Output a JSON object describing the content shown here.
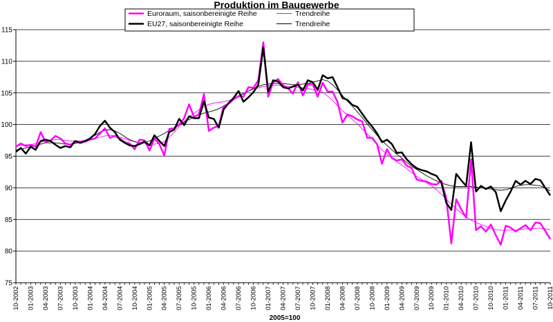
{
  "chart_data": {
    "type": "line",
    "title": "Produktion im Baugewerbe",
    "xlabel": "2005=100",
    "ylabel": "",
    "ylim": [
      75,
      115
    ],
    "yticks": [
      75,
      80,
      85,
      90,
      95,
      100,
      105,
      110,
      115
    ],
    "grid": "horizontal",
    "legend_position": "top-left",
    "x_tick_labels": [
      "10-2002",
      "01-2003",
      "04-2003",
      "07-2003",
      "10-2003",
      "01-2004",
      "04-2004",
      "07-2004",
      "10-2004",
      "01-2005",
      "04-2005",
      "07-2005",
      "10-2005",
      "01-2006",
      "04-2006",
      "07-2006",
      "10-2006",
      "01-2007",
      "04-2007",
      "07-2007",
      "10-2007",
      "01-2008",
      "04-2008",
      "07-2008",
      "10-2008",
      "01-2009",
      "04-2009",
      "07-2009",
      "10-2009",
      "01-2010",
      "04-2010",
      "07-2010",
      "10-2010",
      "01-2011",
      "04-2011",
      "07-2011",
      "10-2011"
    ],
    "series": [
      {
        "name": "Euroraum, saisonbereinigte Reihe",
        "color": "#ff00ff",
        "width": 2.5,
        "values": [
          96.5,
          97.0,
          96.6,
          96.8,
          96.5,
          98.8,
          97.2,
          97.5,
          98.2,
          97.8,
          97.0,
          96.8,
          97.3,
          97.1,
          97.3,
          97.6,
          97.8,
          98.6,
          99.4,
          97.9,
          98.2,
          97.8,
          97.2,
          97.0,
          96.1,
          97.6,
          97.5,
          95.9,
          97.8,
          96.9,
          95.1,
          99.3,
          99.4,
          100.0,
          101.0,
          103.2,
          101.2,
          101.6,
          104.8,
          99.0,
          99.5,
          99.8,
          102.9,
          103.3,
          104.0,
          104.5,
          104.4,
          105.9,
          105.8,
          107.0,
          113.0,
          104.4,
          106.7,
          107.2,
          106.2,
          105.7,
          104.9,
          106.7,
          104.6,
          106.3,
          106.4,
          104.4,
          106.6,
          105.2,
          105.2,
          103.6,
          100.3,
          101.6,
          101.3,
          100.8,
          100.5,
          97.9,
          97.9,
          96.9,
          93.8,
          96.1,
          94.7,
          94.3,
          94.5,
          93.5,
          93.1,
          91.3,
          91.1,
          91.0,
          90.6,
          90.5,
          91.1,
          88.3,
          81.2,
          88.2,
          86.6,
          85.3,
          94.5,
          83.3,
          83.9,
          83.1,
          84.2,
          82.5,
          81.0,
          84.0,
          83.7,
          83.1,
          83.6,
          84.1,
          83.3,
          84.5,
          84.4,
          83.2,
          81.9
        ]
      },
      {
        "name": "Trendreihe",
        "color": "#ff00ff",
        "width": 0.9,
        "values": [
          96.6,
          96.7,
          96.8,
          96.8,
          97.0,
          97.2,
          97.4,
          97.5,
          97.6,
          97.6,
          97.5,
          97.4,
          97.4,
          97.4,
          97.5,
          97.6,
          97.8,
          98.0,
          98.2,
          98.3,
          98.2,
          98.0,
          97.8,
          97.5,
          97.3,
          97.1,
          97.0,
          96.9,
          96.9,
          97.0,
          97.3,
          98.0,
          98.8,
          99.7,
          100.5,
          101.2,
          101.8,
          102.3,
          102.8,
          103.2,
          103.4,
          103.5,
          103.6,
          103.8,
          104.0,
          104.5,
          104.9,
          105.3,
          105.6,
          105.8,
          106.0,
          106.1,
          106.2,
          106.2,
          106.1,
          106.0,
          106.0,
          105.9,
          105.8,
          105.7,
          105.5,
          105.3,
          105.1,
          104.5,
          103.8,
          103.0,
          102.2,
          101.5,
          100.8,
          100.1,
          99.3,
          98.5,
          97.7,
          96.8,
          96.0,
          95.3,
          94.7,
          94.1,
          93.6,
          93.0,
          92.4,
          91.8,
          91.3,
          90.8,
          90.3,
          89.7,
          89.0,
          88.2,
          87.4,
          86.7,
          86.0,
          85.4,
          84.9,
          84.5,
          84.2,
          83.9,
          83.6,
          83.4,
          83.3,
          83.3,
          83.3,
          83.3,
          83.4,
          83.5,
          83.5,
          83.6,
          83.6,
          83.5,
          83.4
        ]
      },
      {
        "name": "EU27, saisonbereinigte Reihe",
        "color": "#000000",
        "width": 2.5,
        "values": [
          95.7,
          96.3,
          95.4,
          96.5,
          96.0,
          97.4,
          97.6,
          97.4,
          96.8,
          96.3,
          96.6,
          96.4,
          97.4,
          97.1,
          97.4,
          97.8,
          98.5,
          99.8,
          100.6,
          99.5,
          98.8,
          97.6,
          97.1,
          96.7,
          96.6,
          96.9,
          97.3,
          96.7,
          98.3,
          97.4,
          96.6,
          98.8,
          99.2,
          100.9,
          99.9,
          101.3,
          101.0,
          101.0,
          103.7,
          101.1,
          100.9,
          99.5,
          102.4,
          103.4,
          104.2,
          105.3,
          103.6,
          104.3,
          105.1,
          106.3,
          112.2,
          105.2,
          107.0,
          106.8,
          105.9,
          105.7,
          106.0,
          106.3,
          105.4,
          107.0,
          106.7,
          105.5,
          107.8,
          107.3,
          107.5,
          105.9,
          104.2,
          103.9,
          103.1,
          102.8,
          101.7,
          100.6,
          99.7,
          98.6,
          97.2,
          97.6,
          96.9,
          95.5,
          95.6,
          94.5,
          93.7,
          93.1,
          92.8,
          92.6,
          92.2,
          91.9,
          90.8,
          87.6,
          86.5,
          92.2,
          91.2,
          90.3,
          97.2,
          89.4,
          90.3,
          89.8,
          90.2,
          89.3,
          86.3,
          88.0,
          89.4,
          91.1,
          90.5,
          91.1,
          90.6,
          91.4,
          91.2,
          90.0,
          88.8
        ]
      },
      {
        "name": "Trendreihe",
        "color": "#000000",
        "width": 0.9,
        "values": [
          96.0,
          96.1,
          96.3,
          96.5,
          96.7,
          96.9,
          97.1,
          97.1,
          97.1,
          97.0,
          96.9,
          96.9,
          97.0,
          97.2,
          97.5,
          97.9,
          98.3,
          98.8,
          99.1,
          99.2,
          99.0,
          98.6,
          98.1,
          97.6,
          97.3,
          97.1,
          97.2,
          97.4,
          97.8,
          98.2,
          98.6,
          99.1,
          99.5,
          100.0,
          100.4,
          100.8,
          101.2,
          101.5,
          101.8,
          102.0,
          102.2,
          102.5,
          102.9,
          103.4,
          103.9,
          104.4,
          104.9,
          105.3,
          105.7,
          106.0,
          106.3,
          106.4,
          106.5,
          106.5,
          106.5,
          106.4,
          106.3,
          106.3,
          106.4,
          106.5,
          106.7,
          106.9,
          107.1,
          106.9,
          106.3,
          105.5,
          104.6,
          103.7,
          102.9,
          102.0,
          101.1,
          100.1,
          99.2,
          98.3,
          97.5,
          96.7,
          96.0,
          95.3,
          94.7,
          94.0,
          93.4,
          92.9,
          92.4,
          91.9,
          91.5,
          91.1,
          90.8,
          90.5,
          90.3,
          90.2,
          90.2,
          90.2,
          90.2,
          90.1,
          90.0,
          89.9,
          89.8,
          89.7,
          89.6,
          89.7,
          89.9,
          90.2,
          90.4,
          90.5,
          90.5,
          90.4,
          90.3,
          90.0,
          89.5
        ]
      }
    ]
  }
}
